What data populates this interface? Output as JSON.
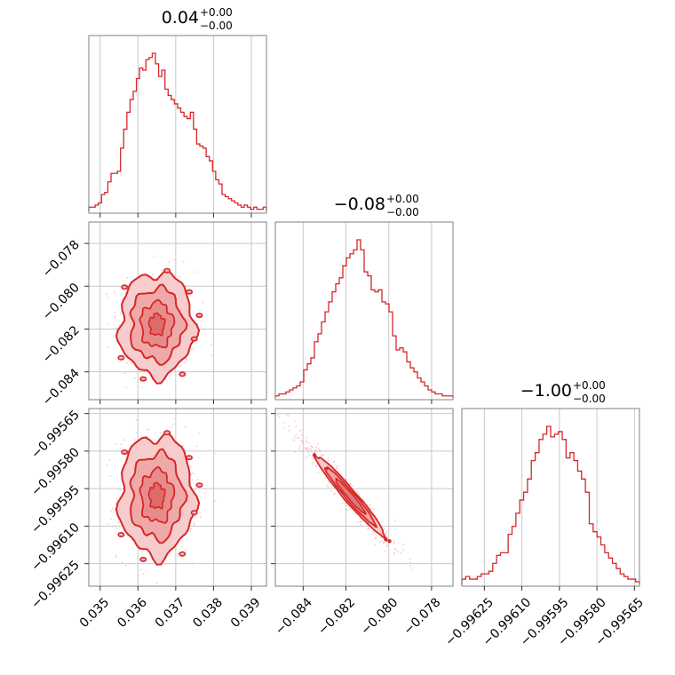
{
  "chart_data": {
    "type": "corner",
    "color": "#d62728",
    "grid": true,
    "title": "",
    "params": [
      {
        "title_value": "0.04",
        "title_plus": "+0.00",
        "title_minus": "−0.00",
        "range": [
          0.0347,
          0.0394
        ],
        "ticks": [
          0.035,
          0.036,
          0.037,
          0.038,
          0.039
        ],
        "tick_labels": [
          "0.035",
          "0.036",
          "0.037",
          "0.038",
          "0.039"
        ]
      },
      {
        "title_value": "−0.08",
        "title_plus": "+0.00",
        "title_minus": "−0.00",
        "range": [
          -0.0853,
          -0.077
        ],
        "ticks": [
          -0.084,
          -0.082,
          -0.08,
          -0.078
        ],
        "tick_labels": [
          "−0.084",
          "−0.082",
          "−0.080",
          "−0.078"
        ]
      },
      {
        "title_value": "−1.00",
        "title_plus": "+0.00",
        "title_minus": "−0.00",
        "range": [
          -0.99634,
          -0.99563
        ],
        "ticks": [
          -0.99625,
          -0.9961,
          -0.99595,
          -0.9958,
          -0.99565
        ],
        "tick_labels": [
          "−0.99625",
          "−0.99610",
          "−0.99595",
          "−0.99580",
          "−0.99565"
        ]
      }
    ],
    "histograms": [
      {
        "param": 0,
        "counts": [
          2,
          2,
          3,
          4,
          8,
          9,
          14,
          18,
          18,
          19,
          30,
          39,
          47,
          53,
          57,
          63,
          68,
          67,
          72,
          73,
          75,
          70,
          64,
          67,
          58,
          55,
          53,
          51,
          49,
          47,
          45,
          44,
          47,
          39,
          32,
          31,
          30,
          26,
          24,
          19,
          15,
          13,
          8,
          7,
          6,
          5,
          4,
          3,
          2,
          3,
          2,
          1,
          2,
          1,
          1,
          2
        ]
      },
      {
        "param": 1,
        "counts": [
          1,
          2,
          2,
          3,
          4,
          5,
          6,
          8,
          14,
          17,
          20,
          28,
          32,
          38,
          43,
          48,
          53,
          57,
          60,
          66,
          70,
          72,
          74,
          79,
          74,
          63,
          61,
          54,
          53,
          54,
          48,
          47,
          43,
          31,
          24,
          25,
          23,
          18,
          15,
          13,
          10,
          8,
          6,
          4,
          3,
          2,
          2,
          1,
          1,
          1
        ]
      },
      {
        "param": 2,
        "counts": [
          2,
          3,
          2,
          2,
          3,
          4,
          4,
          5,
          8,
          11,
          12,
          12,
          19,
          22,
          27,
          32,
          35,
          40,
          47,
          50,
          55,
          57,
          60,
          56,
          57,
          58,
          55,
          48,
          50,
          47,
          43,
          40,
          35,
          23,
          20,
          18,
          15,
          12,
          10,
          8,
          6,
          4,
          3,
          2,
          2,
          1
        ]
      }
    ],
    "scatter_panels": [
      {
        "x_param": 0,
        "y_param": 1,
        "x_center": 0.0365,
        "y_center": -0.0818,
        "x_sd": 0.00045,
        "y_sd": 0.0011,
        "corr": 0.0
      },
      {
        "x_param": 0,
        "y_param": 2,
        "x_center": 0.0365,
        "y_center": -0.99598,
        "x_sd": 0.00045,
        "y_sd": 0.00011,
        "corr": 0.0
      },
      {
        "x_param": 1,
        "y_param": 2,
        "x_center": -0.0818,
        "y_center": -0.99598,
        "x_sd": 0.0011,
        "y_sd": 0.00011,
        "corr": -0.97
      }
    ]
  }
}
